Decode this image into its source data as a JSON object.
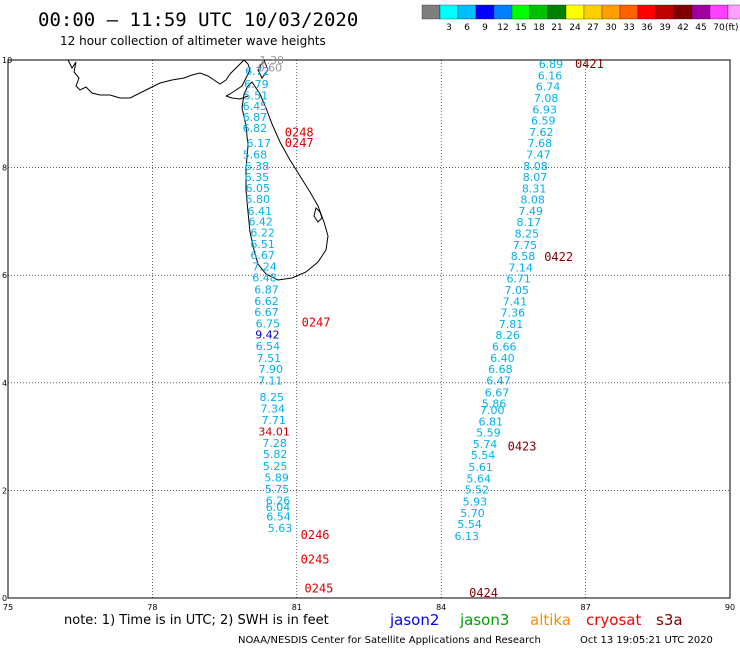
{
  "header": {
    "title": "00:00 – 11:59 UTC 10/03/2020",
    "subtitle": "12 hour collection of altimeter wave heights"
  },
  "scale": {
    "colors": [
      "#7f7f7f",
      "#00ffff",
      "#00bfff",
      "#0000ff",
      "#0080ff",
      "#00ff00",
      "#00c000",
      "#008000",
      "#ffff00",
      "#ffd000",
      "#ffa000",
      "#ff6000",
      "#ff0000",
      "#c00000",
      "#800000",
      "#a000a0",
      "#ff40ff",
      "#ffa0ff",
      "#000000"
    ],
    "labels": [
      "3",
      "6",
      "9",
      "12",
      "15",
      "18",
      "21",
      "24",
      "27",
      "30",
      "33",
      "36",
      "39",
      "42",
      "45",
      "70"
    ],
    "unit": "(ft)"
  },
  "axes": {
    "x_ticks": [
      "75",
      "78",
      "81",
      "84",
      "87",
      "90"
    ],
    "y_ticks": [
      "0",
      "2",
      "4",
      "6",
      "8",
      "10"
    ]
  },
  "footer": {
    "note": "note: 1) Time is in UTC; 2) SWH is in feet",
    "legend": [
      {
        "name": "jason2",
        "color": "#0000ff"
      },
      {
        "name": "jason3",
        "color": "#00a000"
      },
      {
        "name": "altika",
        "color": "#ff8c00"
      },
      {
        "name": "cryosat",
        "color": "#ff0000"
      },
      {
        "name": "s3a",
        "color": "#800000"
      }
    ],
    "credit": "NOAA/NESDIS Center for Satellite Applications and Research",
    "timestamp": "Oct 13 19:05:21 UTC 2020"
  },
  "tracks": [
    {
      "name": "west-pass",
      "color": "#00b0f0",
      "points": [
        {
          "lon": 80.18,
          "lat": 9.72,
          "v": "6.72"
        },
        {
          "lon": 80.16,
          "lat": 9.48,
          "v": "6.79"
        },
        {
          "lon": 80.15,
          "lat": 9.27,
          "v": "5.51"
        },
        {
          "lon": 80.13,
          "lat": 9.07,
          "v": "6.45"
        },
        {
          "lon": 80.13,
          "lat": 8.87,
          "v": "6.87"
        },
        {
          "lon": 80.13,
          "lat": 8.66,
          "v": "6.82"
        },
        {
          "lon": 80.21,
          "lat": 8.38,
          "v": "6.17"
        },
        {
          "lon": 80.13,
          "lat": 8.17,
          "v": "5.68"
        },
        {
          "lon": 80.17,
          "lat": 7.96,
          "v": "6.38"
        },
        {
          "lon": 80.17,
          "lat": 7.75,
          "v": "6.35"
        },
        {
          "lon": 80.19,
          "lat": 7.55,
          "v": "6.05"
        },
        {
          "lon": 80.19,
          "lat": 7.34,
          "v": "5.80"
        },
        {
          "lon": 80.23,
          "lat": 7.12,
          "v": "6.41"
        },
        {
          "lon": 80.25,
          "lat": 6.92,
          "v": "6.42"
        },
        {
          "lon": 80.29,
          "lat": 6.72,
          "v": "6.22"
        },
        {
          "lon": 80.29,
          "lat": 6.51,
          "v": "6.51"
        },
        {
          "lon": 80.29,
          "lat": 6.3,
          "v": "6.67"
        },
        {
          "lon": 80.33,
          "lat": 6.09,
          "v": "7.24"
        },
        {
          "lon": 80.33,
          "lat": 5.88,
          "v": "6.48"
        },
        {
          "lon": 80.37,
          "lat": 5.66,
          "v": "6.87"
        },
        {
          "lon": 80.37,
          "lat": 5.45,
          "v": "6.62"
        },
        {
          "lon": 80.37,
          "lat": 5.24,
          "v": "6.67"
        },
        {
          "lon": 80.4,
          "lat": 5.03,
          "v": "6.75"
        },
        {
          "lon": 80.39,
          "lat": 4.82,
          "v": "9.42",
          "color": "#0000cc"
        },
        {
          "lon": 80.4,
          "lat": 4.61,
          "v": "6.54"
        },
        {
          "lon": 80.42,
          "lat": 4.39,
          "v": "7.51"
        },
        {
          "lon": 80.46,
          "lat": 4.18,
          "v": "7.90"
        },
        {
          "lon": 80.45,
          "lat": 3.97,
          "v": "7.11"
        },
        {
          "lon": 80.48,
          "lat": 3.66,
          "v": "8.25"
        },
        {
          "lon": 80.5,
          "lat": 3.45,
          "v": "7.34"
        },
        {
          "lon": 80.52,
          "lat": 3.23,
          "v": "7.71"
        },
        {
          "lon": 80.53,
          "lat": 3.02,
          "v": "34.01",
          "color": "#c00000"
        },
        {
          "lon": 80.54,
          "lat": 2.81,
          "v": "7.28"
        },
        {
          "lon": 80.55,
          "lat": 2.6,
          "v": "5.82"
        },
        {
          "lon": 80.55,
          "lat": 2.38,
          "v": "5.25"
        },
        {
          "lon": 80.58,
          "lat": 2.17,
          "v": "5.89"
        },
        {
          "lon": 80.59,
          "lat": 1.95,
          "v": "5.75"
        },
        {
          "lon": 80.61,
          "lat": 1.74,
          "v": "6.26"
        },
        {
          "lon": 80.61,
          "lat": 1.62,
          "v": "6.04"
        },
        {
          "lon": 80.62,
          "lat": 1.44,
          "v": "6.54"
        },
        {
          "lon": 80.65,
          "lat": 1.23,
          "v": "5.63"
        }
      ],
      "times": [
        {
          "lon": 81.05,
          "lat": 8.58,
          "t": "0248",
          "color": "#e00000"
        },
        {
          "lon": 81.05,
          "lat": 8.38,
          "t": "0247",
          "color": "#e00000"
        },
        {
          "lon": 81.4,
          "lat": 5.05,
          "t": "0247",
          "color": "#e00000"
        },
        {
          "lon": 81.38,
          "lat": 1.1,
          "t": "0246",
          "color": "#e00000"
        },
        {
          "lon": 81.38,
          "lat": 0.64,
          "t": "0245",
          "color": "#e00000"
        },
        {
          "lon": 81.46,
          "lat": 0.1,
          "t": "0245",
          "color": "#e00000"
        }
      ]
    },
    {
      "name": "east-pass",
      "color": "#00b0f0",
      "points": [
        {
          "lon": 86.28,
          "lat": 9.85,
          "v": "6.89"
        },
        {
          "lon": 86.26,
          "lat": 9.64,
          "v": "6.16"
        },
        {
          "lon": 86.22,
          "lat": 9.43,
          "v": "6.74"
        },
        {
          "lon": 86.18,
          "lat": 9.22,
          "v": "7.08"
        },
        {
          "lon": 86.15,
          "lat": 9.01,
          "v": "6.93"
        },
        {
          "lon": 86.12,
          "lat": 8.8,
          "v": "6.59"
        },
        {
          "lon": 86.08,
          "lat": 8.59,
          "v": "7.62"
        },
        {
          "lon": 86.05,
          "lat": 8.38,
          "v": "7.68"
        },
        {
          "lon": 86.02,
          "lat": 8.17,
          "v": "7.47"
        },
        {
          "lon": 85.96,
          "lat": 7.96,
          "v": "8.08"
        },
        {
          "lon": 85.95,
          "lat": 7.75,
          "v": "8.07"
        },
        {
          "lon": 85.93,
          "lat": 7.54,
          "v": "8.31"
        },
        {
          "lon": 85.9,
          "lat": 7.33,
          "v": "8.08"
        },
        {
          "lon": 85.86,
          "lat": 7.12,
          "v": "7.49"
        },
        {
          "lon": 85.82,
          "lat": 6.91,
          "v": "8.17"
        },
        {
          "lon": 85.78,
          "lat": 6.7,
          "v": "8.25"
        },
        {
          "lon": 85.74,
          "lat": 6.49,
          "v": "7.75"
        },
        {
          "lon": 85.7,
          "lat": 6.28,
          "v": "8.58"
        },
        {
          "lon": 85.65,
          "lat": 6.07,
          "v": "7.14"
        },
        {
          "lon": 85.61,
          "lat": 5.86,
          "v": "6.71"
        },
        {
          "lon": 85.57,
          "lat": 5.65,
          "v": "7.05"
        },
        {
          "lon": 85.53,
          "lat": 5.44,
          "v": "7.41"
        },
        {
          "lon": 85.49,
          "lat": 5.23,
          "v": "7.36"
        },
        {
          "lon": 85.45,
          "lat": 5.02,
          "v": "7.81"
        },
        {
          "lon": 85.38,
          "lat": 4.81,
          "v": "8.26"
        },
        {
          "lon": 85.31,
          "lat": 4.6,
          "v": "6.66"
        },
        {
          "lon": 85.27,
          "lat": 4.39,
          "v": "6.40"
        },
        {
          "lon": 85.23,
          "lat": 4.18,
          "v": "6.68"
        },
        {
          "lon": 85.19,
          "lat": 3.97,
          "v": "6.47"
        },
        {
          "lon": 85.16,
          "lat": 3.75,
          "v": "6.67"
        },
        {
          "lon": 85.1,
          "lat": 3.54,
          "v": "5.86"
        },
        {
          "lon": 85.06,
          "lat": 3.42,
          "v": "7.00"
        },
        {
          "lon": 85.03,
          "lat": 3.21,
          "v": "6.81"
        },
        {
          "lon": 84.98,
          "lat": 3.0,
          "v": "5.59"
        },
        {
          "lon": 84.91,
          "lat": 2.79,
          "v": "5.74"
        },
        {
          "lon": 84.87,
          "lat": 2.58,
          "v": "5.54"
        },
        {
          "lon": 84.82,
          "lat": 2.36,
          "v": "5.61"
        },
        {
          "lon": 84.78,
          "lat": 2.15,
          "v": "5.64"
        },
        {
          "lon": 84.74,
          "lat": 1.94,
          "v": "5.52"
        },
        {
          "lon": 84.7,
          "lat": 1.72,
          "v": "5.93"
        },
        {
          "lon": 84.65,
          "lat": 1.51,
          "v": "5.70"
        },
        {
          "lon": 84.59,
          "lat": 1.3,
          "v": "5.54"
        },
        {
          "lon": 84.53,
          "lat": 1.08,
          "v": "6.13"
        }
      ],
      "times": [
        {
          "lon": 87.08,
          "lat": 9.85,
          "t": "0421",
          "color": "#800000"
        },
        {
          "lon": 86.44,
          "lat": 6.26,
          "t": "0422",
          "color": "#800000"
        },
        {
          "lon": 85.68,
          "lat": 2.74,
          "t": "0423",
          "color": "#800000"
        },
        {
          "lon": 84.88,
          "lat": 0.02,
          "t": "0424",
          "color": "#800000"
        }
      ]
    },
    {
      "name": "gray-pass",
      "color": "#999999",
      "points": [
        {
          "lon": 80.48,
          "lat": 9.93,
          "v": "1.30"
        },
        {
          "lon": 80.44,
          "lat": 9.79,
          "v": "0.60"
        }
      ],
      "times": []
    }
  ]
}
